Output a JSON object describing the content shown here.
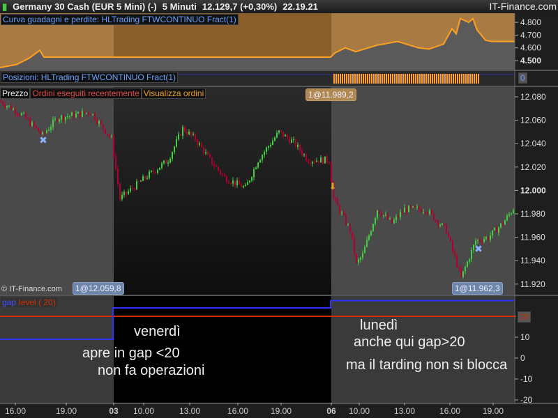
{
  "header": {
    "title": "Germany 30 Cash (EUR 5 Mini) (-)",
    "timeframe": "5 Minuti",
    "price": "12.129,7 (+0,30%)",
    "time": "22.19.21",
    "brand": "IT-Finance.com",
    "icon": "candlestick-icon"
  },
  "equity_panel": {
    "label": "Curva guadagni e perdite: HLTrading FTWCONTINUO Fract(1)",
    "ticks": [
      "4.800",
      "4.700",
      "4.600",
      "4.500"
    ],
    "tick_values": [
      4.8,
      4.7,
      4.6,
      4.5
    ],
    "curve": [
      [
        0,
        4.445
      ],
      [
        8,
        4.47
      ],
      [
        14,
        4.52
      ],
      [
        19,
        4.58
      ],
      [
        21,
        4.527
      ],
      [
        158,
        4.527
      ],
      [
        160,
        4.56
      ],
      [
        165,
        4.6
      ],
      [
        170,
        4.57
      ],
      [
        180,
        4.62
      ],
      [
        190,
        4.65
      ],
      [
        200,
        4.6
      ],
      [
        205,
        4.59
      ],
      [
        212,
        4.63
      ],
      [
        216,
        4.75
      ],
      [
        218,
        4.71
      ],
      [
        220,
        4.83
      ],
      [
        224,
        4.8
      ],
      [
        226,
        4.83
      ],
      [
        228,
        4.74
      ],
      [
        232,
        4.66
      ],
      [
        235,
        4.65
      ],
      [
        246,
        4.65
      ]
    ]
  },
  "positions_panel": {
    "label": "Posizioni: HLTrading FTWCONTINUO Fract(1)",
    "value": "0"
  },
  "price_panel": {
    "tabs": [
      "Prezzo",
      "Ordini eseguiti recentemente",
      "Visualizza ordini"
    ],
    "ticks": [
      "12.080",
      "12.060",
      "12.040",
      "12.020",
      "12.000",
      "11.980",
      "11.960",
      "11.940",
      "11.920"
    ],
    "orders": [
      "1@12.059,8",
      "1@11.989,2",
      "1@11.962,3"
    ],
    "watermark": "© IT-Finance.com",
    "path": [
      [
        0,
        12076
      ],
      [
        10,
        12065
      ],
      [
        20,
        12047
      ],
      [
        27,
        12062
      ],
      [
        43,
        12067
      ],
      [
        53,
        12044
      ],
      [
        57,
        11993
      ],
      [
        67,
        12008
      ],
      [
        80,
        12026
      ],
      [
        87,
        12053
      ],
      [
        93,
        12044
      ],
      [
        100,
        12026
      ],
      [
        107,
        12011
      ],
      [
        117,
        12002
      ],
      [
        123,
        12026
      ],
      [
        133,
        12050
      ],
      [
        140,
        12041
      ],
      [
        147,
        12026
      ],
      [
        157,
        12026
      ],
      [
        159,
        11993
      ],
      [
        167,
        11966
      ],
      [
        170,
        11937
      ],
      [
        173,
        11945
      ],
      [
        180,
        11984
      ],
      [
        187,
        11972
      ],
      [
        193,
        11984
      ],
      [
        203,
        11984
      ],
      [
        213,
        11966
      ],
      [
        220,
        11925
      ],
      [
        227,
        11957
      ],
      [
        233,
        11960
      ],
      [
        240,
        11972
      ],
      [
        246,
        11987
      ]
    ]
  },
  "gap_panel": {
    "legend_gap": "gap",
    "legend_level": "level ( 20)",
    "level": 20,
    "level_label": "20",
    "ticks": [
      "10",
      "0",
      "-10",
      "-20"
    ],
    "tick_values": [
      10,
      0,
      -10,
      -20
    ],
    "gap_steps": [
      [
        0,
        9
      ],
      [
        54,
        24
      ],
      [
        158,
        27.5
      ]
    ],
    "colors": {
      "gap": "#3030ff",
      "level": "#d03000"
    }
  },
  "annotations": {
    "fri": "venerdì",
    "fri2": "apre in gap <20",
    "fri3": "non fa operazioni",
    "mon": "lunedì",
    "mon2": "anche qui gap>20",
    "mon3": "ma il tarding non si blocca"
  },
  "time_axis": [
    "16.00",
    "19.00",
    "03",
    "10.00",
    "13.00",
    "16.00",
    "19.00",
    "06",
    "10.00",
    "13.00",
    "16.00",
    "19.00"
  ],
  "colors": {
    "up": "#40d040",
    "down": "#b00030",
    "equity_up": "#ffa020",
    "equity_line": "#5090ff"
  }
}
